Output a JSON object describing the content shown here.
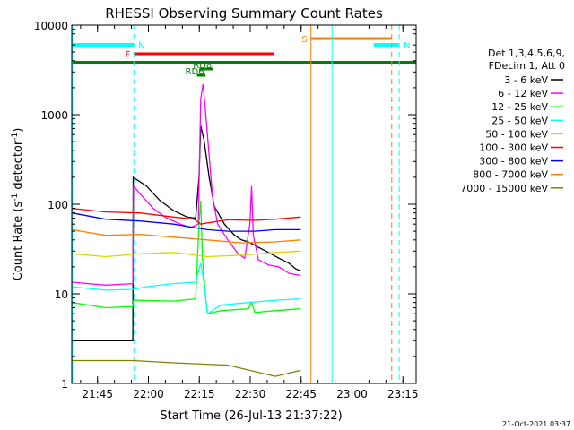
{
  "chart_data": {
    "type": "line",
    "title": "RHESSI Observing Summary Count Rates",
    "xlabel": "Start Time (26-Jul-13 21:37:22)",
    "ylabel_parts": [
      "Count Rate (s",
      "-1",
      " detector",
      "-1",
      ")"
    ],
    "y_scale": "log",
    "ylim": [
      1,
      10000
    ],
    "xlim_minutes": [
      0,
      101.5
    ],
    "x_ticks": [
      {
        "t": 7.6,
        "label": "21:45"
      },
      {
        "t": 22.6,
        "label": "22:00"
      },
      {
        "t": 37.6,
        "label": "22:15"
      },
      {
        "t": 52.6,
        "label": "22:30"
      },
      {
        "t": 67.6,
        "label": "22:45"
      },
      {
        "t": 82.6,
        "label": "23:00"
      },
      {
        "t": 97.6,
        "label": "23:15"
      }
    ],
    "y_ticks": [
      {
        "v": 1,
        "label": "1"
      },
      {
        "v": 10,
        "label": "10"
      },
      {
        "v": 100,
        "label": "100"
      },
      {
        "v": 1000,
        "label": "1000"
      },
      {
        "v": 10000,
        "label": "10000"
      }
    ],
    "legend": {
      "header": [
        "Det 1,3,4,5,6,9,",
        "FDecim 1, Att 0"
      ],
      "position": "right"
    },
    "series": [
      {
        "name": "3 - 6 keV",
        "color": "#000000",
        "points": [
          [
            0,
            3.0
          ],
          [
            18,
            3.0
          ],
          [
            18.1,
            200
          ],
          [
            22,
            160
          ],
          [
            26,
            110
          ],
          [
            30,
            85
          ],
          [
            34,
            72
          ],
          [
            36.5,
            70
          ],
          [
            37.5,
            200
          ],
          [
            38,
            750
          ],
          [
            39,
            520
          ],
          [
            40.5,
            200
          ],
          [
            42,
            95
          ],
          [
            45,
            60
          ],
          [
            48,
            45
          ],
          [
            50,
            40
          ],
          [
            52,
            38
          ],
          [
            55,
            33
          ],
          [
            58,
            29
          ],
          [
            61,
            25
          ],
          [
            64,
            22
          ],
          [
            66,
            19
          ],
          [
            67.5,
            18
          ]
        ]
      },
      {
        "name": "6 - 12 keV",
        "color": "#ff00ff",
        "points": [
          [
            0,
            13.5
          ],
          [
            10,
            12.5
          ],
          [
            18,
            13
          ],
          [
            18.2,
            160
          ],
          [
            21,
            120
          ],
          [
            24,
            90
          ],
          [
            28,
            70
          ],
          [
            32,
            60
          ],
          [
            35,
            55
          ],
          [
            37.3,
            60
          ],
          [
            38,
            1500
          ],
          [
            38.7,
            2200
          ],
          [
            39.4,
            1100
          ],
          [
            40.5,
            350
          ],
          [
            41.5,
            120
          ],
          [
            43,
            60
          ],
          [
            46,
            40
          ],
          [
            49,
            28
          ],
          [
            51,
            25
          ],
          [
            52.5,
            60
          ],
          [
            53,
            160
          ],
          [
            53.5,
            45
          ],
          [
            55,
            24
          ],
          [
            58,
            21
          ],
          [
            61,
            20
          ],
          [
            64,
            17
          ],
          [
            67.5,
            16
          ]
        ]
      },
      {
        "name": "12 - 25 keV",
        "color": "#00ff00",
        "points": [
          [
            0,
            8
          ],
          [
            10,
            7
          ],
          [
            18,
            7.2
          ],
          [
            18.2,
            8.5
          ],
          [
            30,
            8.3
          ],
          [
            36.5,
            8.8
          ],
          [
            37.5,
            60
          ],
          [
            38,
            110
          ],
          [
            38.5,
            25
          ],
          [
            39.5,
            9
          ],
          [
            40,
            6
          ],
          [
            44,
            6.5
          ],
          [
            52,
            6.8
          ],
          [
            53,
            8
          ],
          [
            54,
            6.2
          ],
          [
            60,
            6.5
          ],
          [
            67.5,
            6.8
          ]
        ]
      },
      {
        "name": "25 - 50 keV",
        "color": "#00ffff",
        "points": [
          [
            0,
            12
          ],
          [
            10,
            11
          ],
          [
            18,
            11.2
          ],
          [
            22,
            12
          ],
          [
            30,
            13
          ],
          [
            36.5,
            13.5
          ],
          [
            38,
            22
          ],
          [
            39,
            13
          ],
          [
            40,
            6
          ],
          [
            44,
            7.5
          ],
          [
            52,
            8
          ],
          [
            60,
            8.5
          ],
          [
            67.5,
            8.8
          ]
        ]
      },
      {
        "name": "50 - 100 keV",
        "color": "#d8d800",
        "points": [
          [
            0,
            28
          ],
          [
            10,
            26
          ],
          [
            20,
            28
          ],
          [
            30,
            29
          ],
          [
            40,
            26
          ],
          [
            50,
            27
          ],
          [
            60,
            29
          ],
          [
            67.5,
            30
          ]
        ]
      },
      {
        "name": "100 - 300 keV",
        "color": "#ff0000",
        "points": [
          [
            0,
            90
          ],
          [
            10,
            82
          ],
          [
            20,
            80
          ],
          [
            30,
            72
          ],
          [
            36,
            68
          ],
          [
            38,
            60
          ],
          [
            40,
            62
          ],
          [
            46,
            67
          ],
          [
            54,
            66
          ],
          [
            60,
            68
          ],
          [
            67.5,
            72
          ]
        ]
      },
      {
        "name": "300 - 800 keV",
        "color": "#0000ff",
        "points": [
          [
            0,
            80
          ],
          [
            10,
            68
          ],
          [
            20,
            65
          ],
          [
            30,
            60
          ],
          [
            36,
            55
          ],
          [
            40,
            52
          ],
          [
            46,
            50
          ],
          [
            54,
            50
          ],
          [
            60,
            52
          ],
          [
            67.5,
            52
          ]
        ]
      },
      {
        "name": "800 - 7000 keV",
        "color": "#ff8000",
        "points": [
          [
            0,
            52
          ],
          [
            10,
            45
          ],
          [
            20,
            46
          ],
          [
            30,
            43
          ],
          [
            40,
            40
          ],
          [
            50,
            37
          ],
          [
            60,
            38
          ],
          [
            67.5,
            40
          ]
        ]
      },
      {
        "name": "7000 - 15000 keV",
        "color": "#808000",
        "points": [
          [
            0,
            1.8
          ],
          [
            18,
            1.8
          ],
          [
            30,
            1.7
          ],
          [
            46,
            1.6
          ],
          [
            60,
            1.2
          ],
          [
            67.5,
            1.4
          ]
        ]
      }
    ],
    "flag_bars": [
      {
        "label": "N",
        "color": "#00ffff",
        "t0": 0,
        "t1": 18.3,
        "y_frac": 0.22,
        "width": 4
      },
      {
        "label": "N",
        "color": "#00ffff",
        "t0": 89,
        "t1": 96.5,
        "y_frac": 0.22,
        "width": 4
      },
      {
        "label": "F",
        "color": "#ff0000",
        "t0": 18.3,
        "t1": 59.6,
        "y_frac": 0.32,
        "width": 3
      },
      {
        "label": "S",
        "color": "#ff8000",
        "t0": 70.5,
        "t1": 94.3,
        "y_frac": 0.15,
        "width": 3
      },
      {
        "label": "",
        "color": "#008000",
        "t0": 0,
        "t1": 101.5,
        "y_frac": 0.42,
        "width": 4
      },
      {
        "label": "RD8",
        "color": "#008000",
        "t0": 37.6,
        "t1": 41.7,
        "y_frac": 0.49,
        "width": 3
      },
      {
        "label": "RD6",
        "color": "#008000",
        "t0": 36.9,
        "t1": 39.4,
        "y_frac": 0.56,
        "width": 3
      }
    ],
    "vertical_markers": [
      {
        "t": 18.3,
        "color": "#00ffff",
        "dashed": true
      },
      {
        "t": 70.5,
        "color": "#ff8000",
        "dashed": false
      },
      {
        "t": 76.7,
        "color": "#00ffff",
        "dashed": false
      },
      {
        "t": 94.3,
        "color": "#ff8000",
        "dashed": true
      },
      {
        "t": 96.5,
        "color": "#00ffff",
        "dashed": true
      },
      {
        "t": 0.2,
        "color": "#00ffff",
        "dashed": false
      }
    ],
    "timestamp": "21-Oct-2021 03:37"
  }
}
